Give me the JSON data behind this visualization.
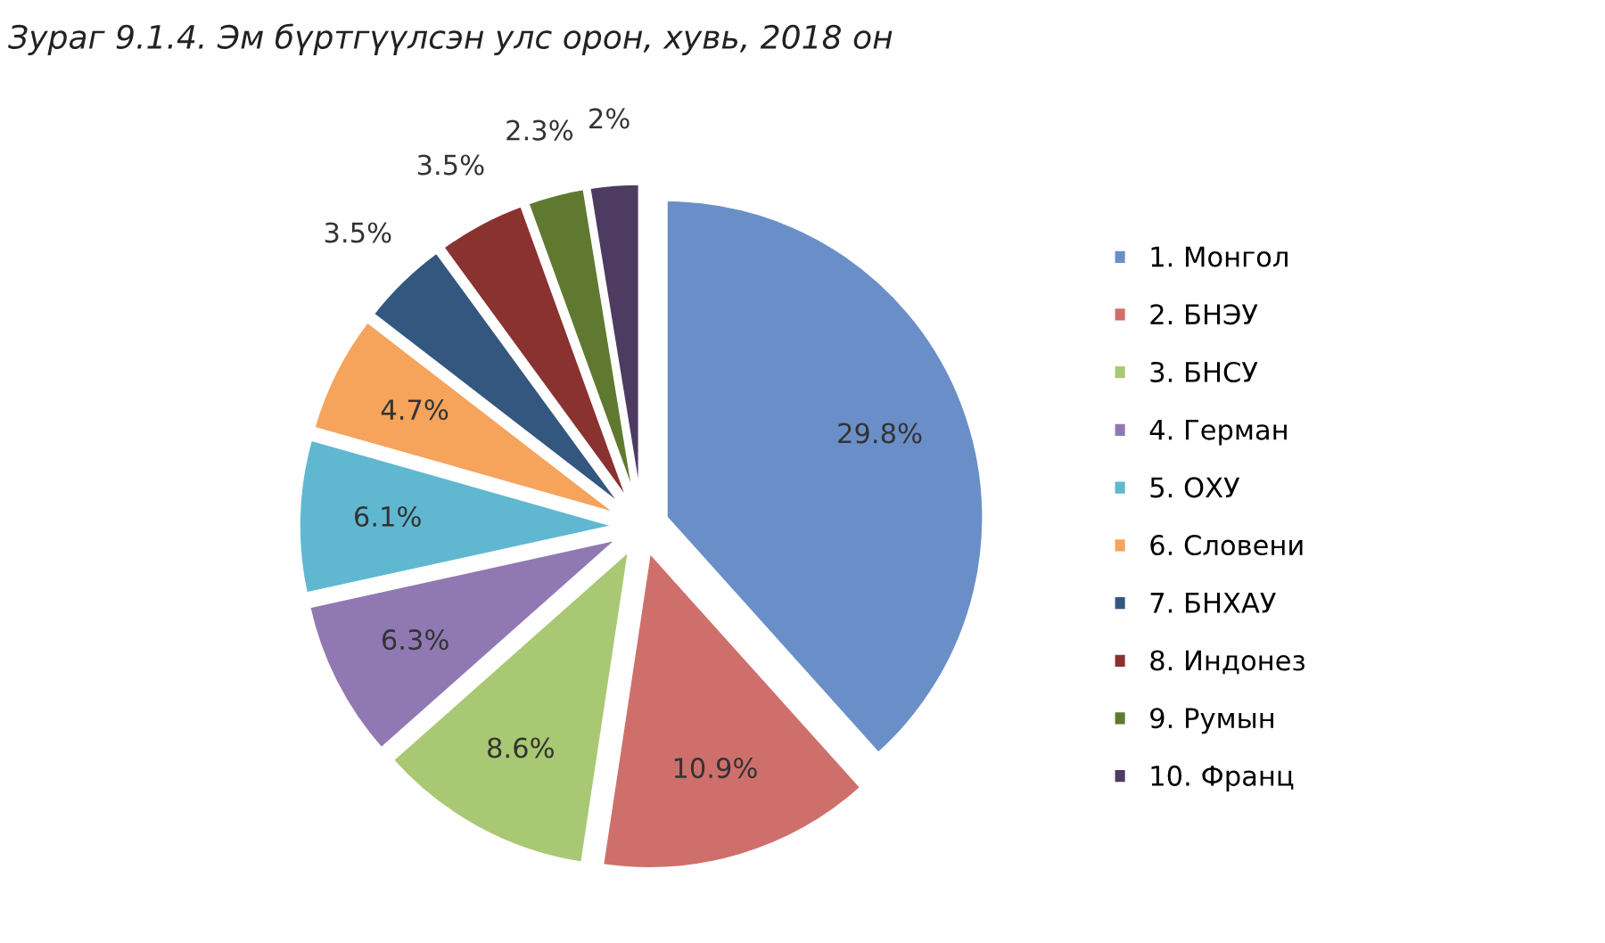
{
  "chart_data": {
    "type": "pie",
    "title": "Зураг 9.1.4. Эм бүртгүүлсэн улс орон, хувь, 2018 он",
    "categories": [
      "1. Монгол",
      "2. БНЭУ",
      "3. БНСУ",
      "4. Герман",
      "5. ОХУ",
      "6. Словени",
      "7. БНХАУ",
      "8. Индонез",
      "9. Румын",
      "10. Франц"
    ],
    "values": [
      29.8,
      10.9,
      8.6,
      6.3,
      6.1,
      4.7,
      3.5,
      3.5,
      2.3,
      2
    ],
    "value_labels": [
      "29.8%",
      "10.9%",
      "8.6%",
      "6.3%",
      "6.1%",
      "4.7%",
      "3.5%",
      "3.5%",
      "2.3%",
      "2%"
    ],
    "colors": [
      "#6a8fc8",
      "#cf6f6c",
      "#a9c873",
      "#9079b3",
      "#5fb8d0",
      "#f6a35c",
      "#34577f",
      "#8a3230",
      "#5f7a30",
      "#4d3b62"
    ],
    "legend": "right"
  }
}
